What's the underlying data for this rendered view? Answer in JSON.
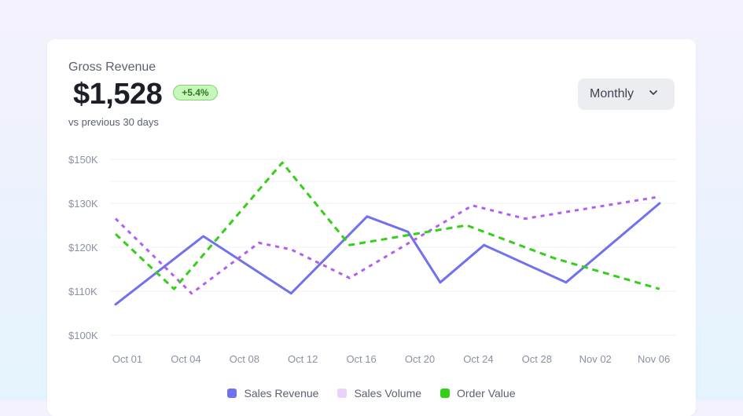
{
  "card": {
    "label": "Gross Revenue",
    "amount": "$1,528",
    "change_badge": "+5.4%",
    "comparison": "vs previous 30 days",
    "period_select": {
      "value": "Monthly",
      "icon": "chevron-down-icon"
    }
  },
  "colors": {
    "sales_revenue": "#7171f0",
    "sales_volume": "#b25ff0",
    "order_value": "#35cf1a",
    "sales_volume_swatch": "#e9d2fc"
  },
  "chart_data": {
    "type": "line",
    "x": [
      "Oct 01",
      "Oct 04",
      "Oct 08",
      "Oct 12",
      "Oct 16",
      "Oct 20",
      "Oct 24",
      "Oct 28",
      "Nov 02",
      "Nov 06"
    ],
    "y_ticks": [
      "$100K",
      "$110K",
      "$120K",
      "$130K",
      "$150K"
    ],
    "ylim": [
      100,
      150
    ],
    "grid": true,
    "legend_position": "bottom",
    "series": [
      {
        "name": "Sales Revenue",
        "style": "solid",
        "color": "#7171f0",
        "points": [
          [
            0,
            107
          ],
          [
            1.5,
            122.5
          ],
          [
            3.0,
            109.5
          ],
          [
            4.3,
            127
          ],
          [
            5.0,
            123.5
          ],
          [
            5.55,
            112
          ],
          [
            6.3,
            120.5
          ],
          [
            7.7,
            112
          ],
          [
            9.3,
            130
          ]
        ]
      },
      {
        "name": "Sales Volume",
        "style": "dotted",
        "color": "#b25ff0",
        "points": [
          [
            0,
            126.5
          ],
          [
            1.3,
            109.5
          ],
          [
            2.45,
            121
          ],
          [
            3.0,
            119.5
          ],
          [
            4.0,
            113
          ],
          [
            6.1,
            129.5
          ],
          [
            7.0,
            126.5
          ],
          [
            9.3,
            133
          ]
        ]
      },
      {
        "name": "Order Value",
        "style": "dashed",
        "color": "#35cf1a",
        "points": [
          [
            0,
            123
          ],
          [
            1.0,
            110.5
          ],
          [
            2.85,
            148.5
          ],
          [
            4.0,
            120.5
          ],
          [
            6.0,
            125
          ],
          [
            7.5,
            117.5
          ],
          [
            9.3,
            110.5
          ]
        ]
      }
    ]
  }
}
